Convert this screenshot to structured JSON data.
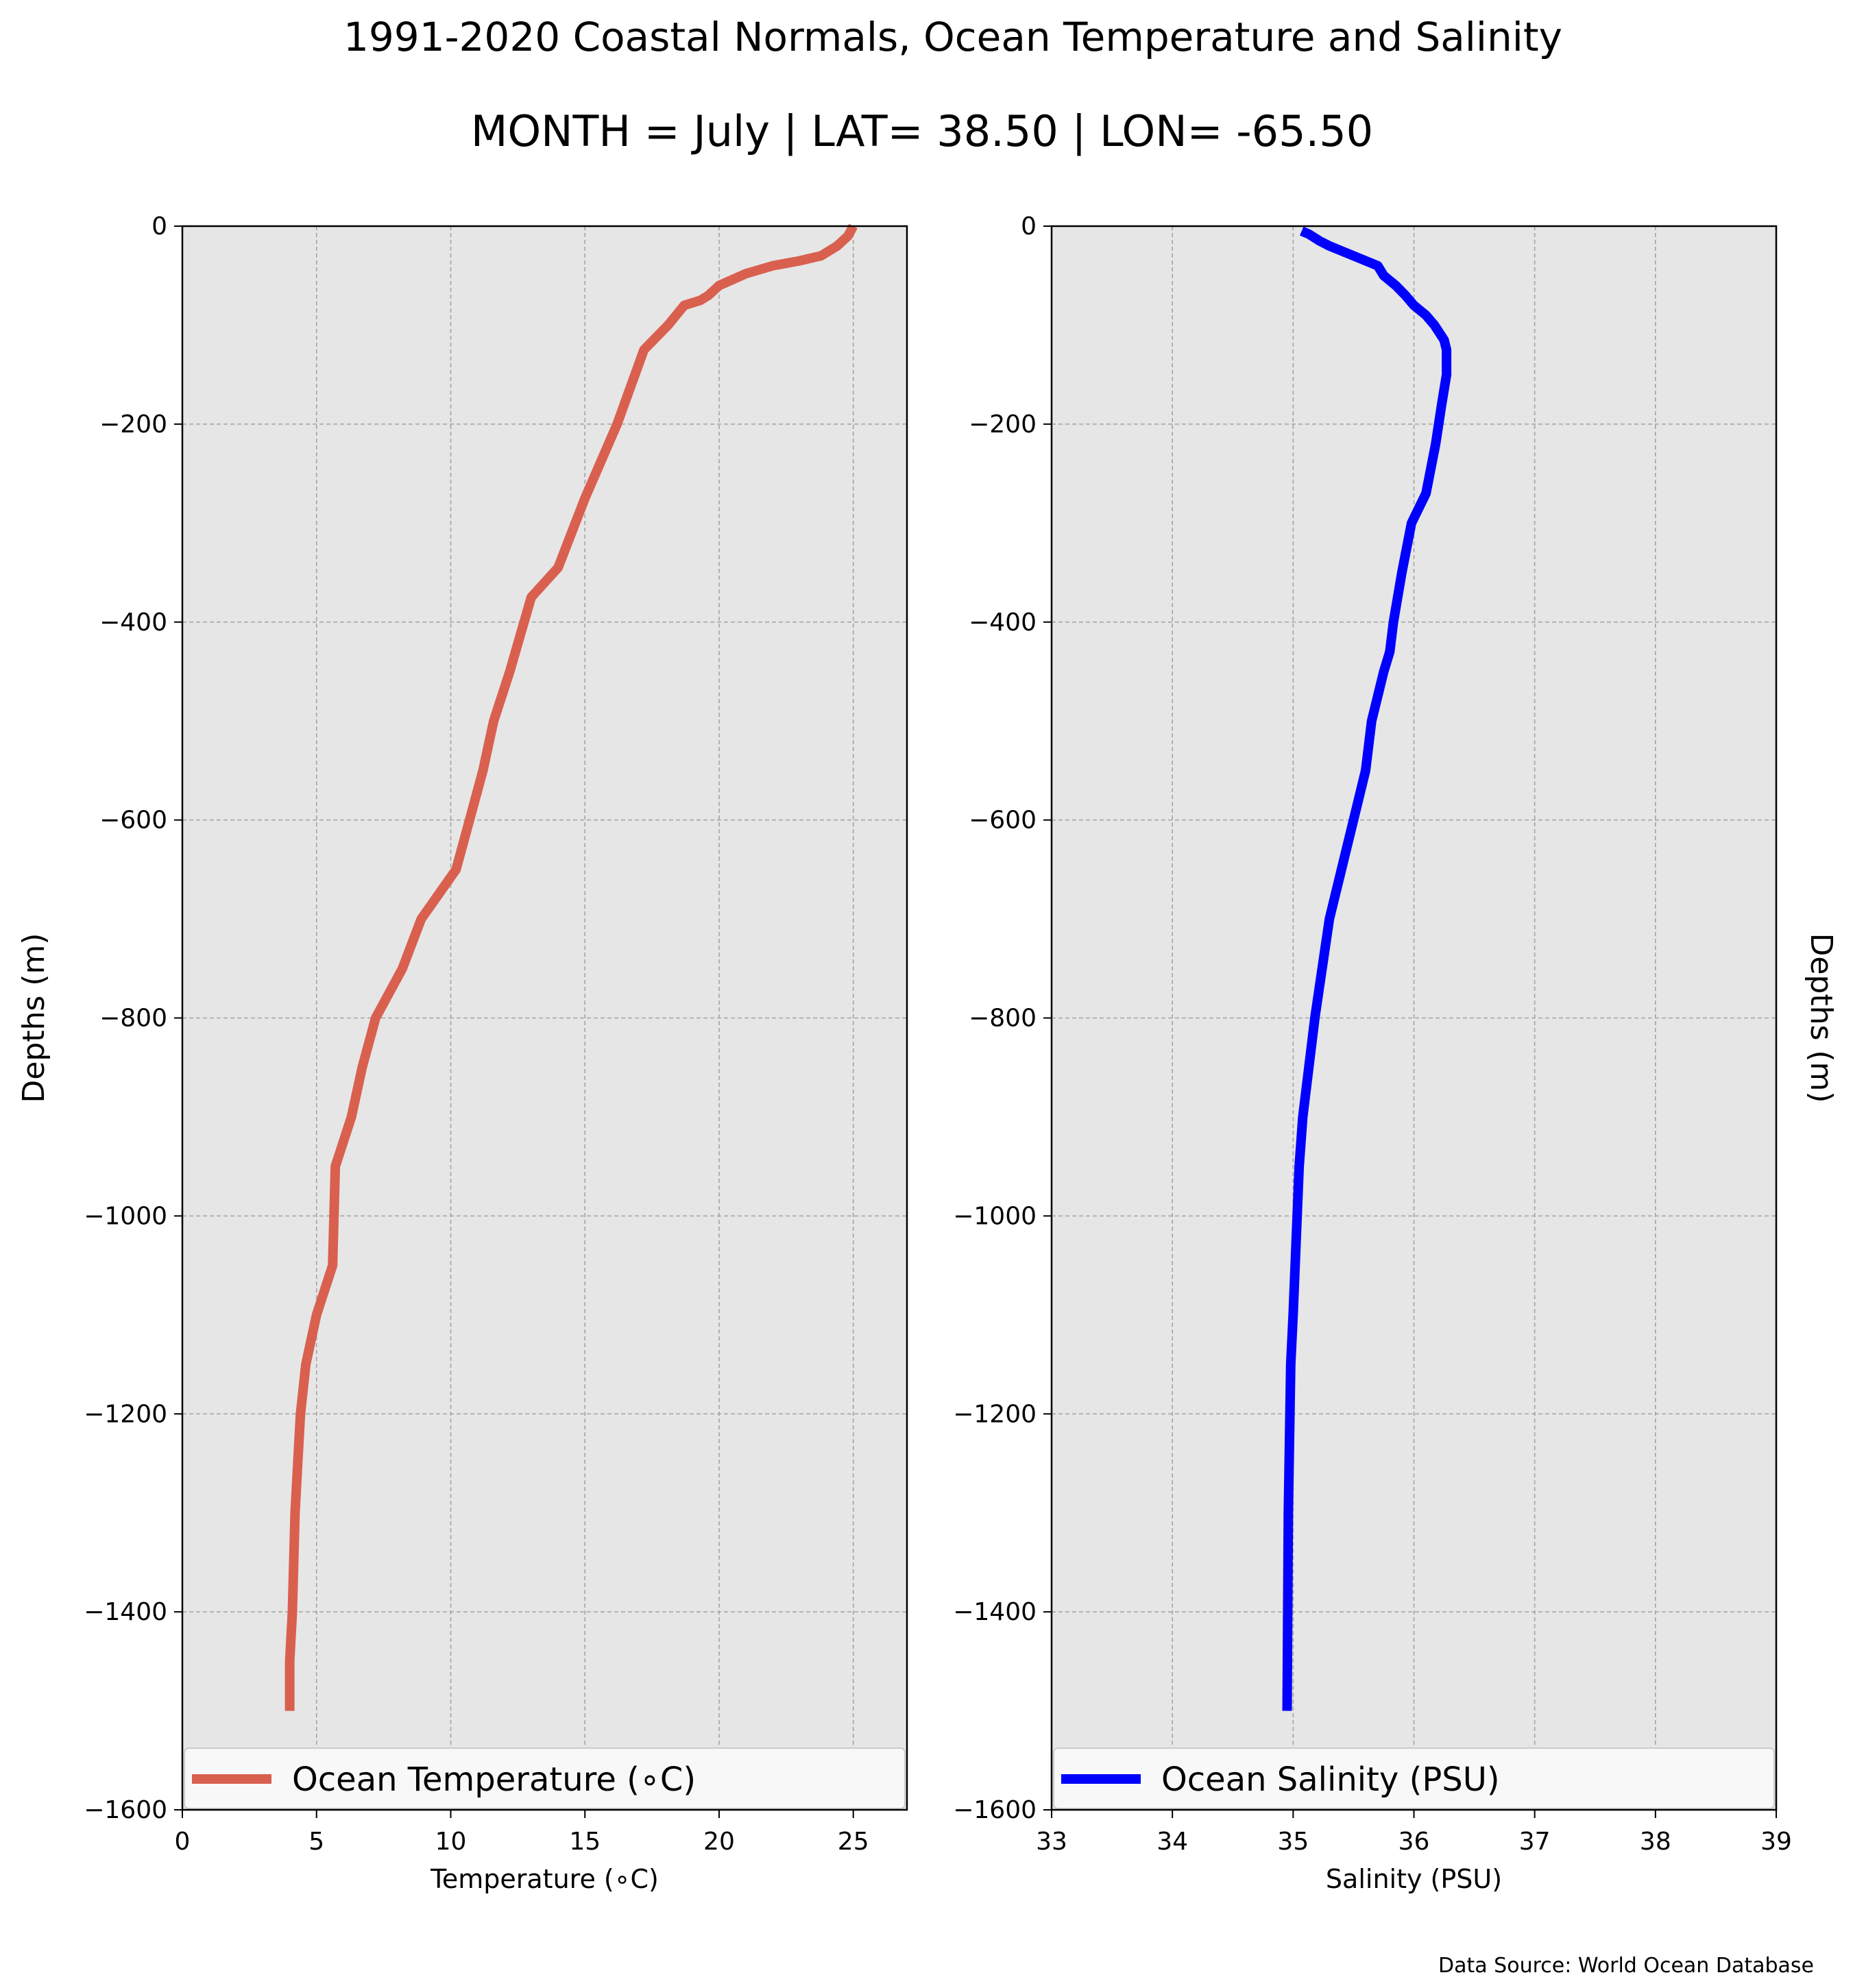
{
  "figure": {
    "title": "1991-2020 Coastal Normals, Ocean Temperature and Salinity",
    "subtitle": "MONTH = July | LAT= 38.50 | LON= -65.50",
    "source": "Data Source: World Ocean Database"
  },
  "chart_data": [
    {
      "type": "line",
      "orientation": "profile",
      "series": [
        {
          "name": "Ocean Temperature ($^\\circ$C)",
          "legend_text": "Ocean Temperature (∘C)",
          "color": "#d9604f",
          "x": [
            25.0,
            24.8,
            24.4,
            23.8,
            23.0,
            22.0,
            21.0,
            20.0,
            19.6,
            19.3,
            18.7,
            18.4,
            18.1,
            17.2,
            16.2,
            15.0,
            14.0,
            13.0,
            12.2,
            11.6,
            11.2,
            10.2,
            8.9,
            8.2,
            7.2,
            6.7,
            6.3,
            5.7,
            5.6,
            5.0,
            4.6,
            4.4,
            4.3,
            4.2,
            4.1,
            4.0,
            4.0
          ],
          "y": [
            0,
            -10,
            -20,
            -30,
            -35,
            -40,
            -48,
            -60,
            -70,
            -75,
            -80,
            -90,
            -100,
            -125,
            -200,
            -275,
            -345,
            -375,
            -450,
            -500,
            -550,
            -650,
            -700,
            -750,
            -800,
            -850,
            -900,
            -950,
            -1050,
            -1100,
            -1150,
            -1200,
            -1250,
            -1300,
            -1400,
            -1450,
            -1500
          ]
        }
      ],
      "xlabel": "Temperature ($^\\circ$C)",
      "xlabel_text": "Temperature (∘C)",
      "ylabel": "Depths (m)",
      "xlim": [
        0,
        27
      ],
      "ylim": [
        -1600,
        0
      ],
      "xticks": [
        0,
        5,
        10,
        15,
        20,
        25
      ],
      "yticks": [
        0,
        -200,
        -400,
        -600,
        -800,
        -1000,
        -1200,
        -1400,
        -1600
      ],
      "ytick_labels": [
        "0",
        "−200",
        "−400",
        "−600",
        "−800",
        "−1000",
        "−1200",
        "−1400",
        "−1600"
      ],
      "grid": true,
      "legend": "lower center",
      "background": "#e6e6e6"
    },
    {
      "type": "line",
      "orientation": "profile",
      "series": [
        {
          "name": "Ocean Salinity (PSU)",
          "color": "#0000ff",
          "x": [
            35.07,
            35.13,
            35.22,
            35.3,
            35.5,
            35.7,
            35.75,
            35.8,
            35.85,
            35.93,
            36.0,
            36.1,
            36.17,
            36.25,
            36.27,
            36.27,
            36.23,
            36.18,
            36.1,
            35.98,
            35.9,
            35.83,
            35.8,
            35.75,
            35.65,
            35.6,
            35.5,
            35.4,
            35.3,
            35.18,
            35.08,
            35.05,
            35.0,
            34.98,
            34.96,
            34.95
          ],
          "y": [
            -5,
            -8,
            -15,
            -20,
            -30,
            -40,
            -50,
            -55,
            -60,
            -70,
            -80,
            -90,
            -100,
            -115,
            -125,
            -150,
            -180,
            -220,
            -270,
            -300,
            -350,
            -400,
            -430,
            -450,
            -500,
            -550,
            -600,
            -650,
            -700,
            -800,
            -900,
            -950,
            -1100,
            -1150,
            -1300,
            -1500
          ]
        }
      ],
      "xlabel": "Salinity (PSU)",
      "ylabel": "Depths (m)",
      "xlim": [
        33,
        39
      ],
      "ylim": [
        -1600,
        0
      ],
      "xticks": [
        33,
        34,
        35,
        36,
        37,
        38,
        39
      ],
      "yticks": [
        0,
        -200,
        -400,
        -600,
        -800,
        -1000,
        -1200,
        -1400,
        -1600
      ],
      "ytick_labels": [
        "0",
        "−200",
        "−400",
        "−600",
        "−800",
        "−1000",
        "−1200",
        "−1400",
        "−1600"
      ],
      "grid": true,
      "legend": "lower center",
      "background": "#e6e6e6"
    }
  ]
}
